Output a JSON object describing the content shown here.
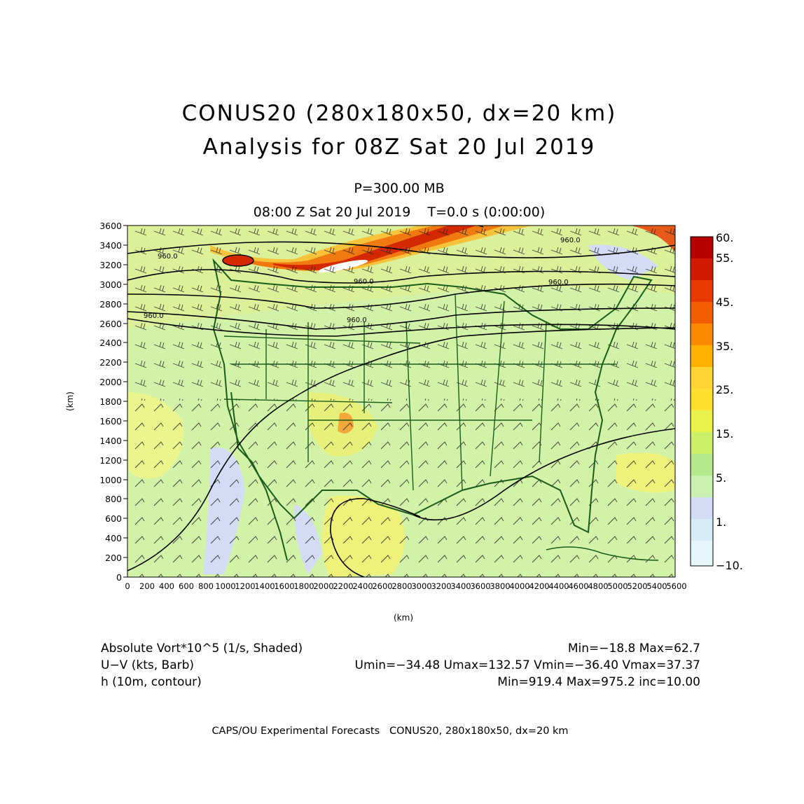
{
  "title": {
    "line1": "CONUS20 (280x180x50, dx=20 km)",
    "line2": "Analysis for 08Z Sat 20 Jul 2019"
  },
  "level": "P=300.00 MB",
  "valid_time": "08:00 Z Sat 20 Jul 2019    T=0.0 s (0:00:00)",
  "axes": {
    "xlabel": "(km)",
    "ylabel": "(km)",
    "xticks": [
      "0",
      "200",
      "400",
      "600",
      "800",
      "1000",
      "1200",
      "1400",
      "1600",
      "1800",
      "2000",
      "2200",
      "2400",
      "2600",
      "2800",
      "3000",
      "3200",
      "3400",
      "3600",
      "3800",
      "4000",
      "4200",
      "4400",
      "4600",
      "4800",
      "5000",
      "5200",
      "5400",
      "5600"
    ],
    "yticks": [
      "0",
      "200",
      "400",
      "600",
      "800",
      "1000",
      "1200",
      "1400",
      "1600",
      "1800",
      "2000",
      "2200",
      "2400",
      "2600",
      "2800",
      "3000",
      "3200",
      "3400",
      "3600"
    ]
  },
  "colorbar": {
    "labels": [
      "60.",
      "55.",
      "45.",
      "35.",
      "25.",
      "15.",
      "5.",
      "1.",
      "−10."
    ],
    "colors": [
      "#b50000",
      "#d21a00",
      "#e63a00",
      "#f25f00",
      "#fa8a00",
      "#ffb000",
      "#ffd535",
      "#e8f04a",
      "#cdf06a",
      "#b6e88c",
      "#c9f0b0",
      "#d4dcf5",
      "#d8ecf8",
      "#e6f6fb"
    ]
  },
  "contour_labels": [
    "960.0",
    "960.0",
    "960.0",
    "960.0",
    "960.0",
    "960.0"
  ],
  "legend": {
    "field1": "Absolute Vort*10^5 (1/s, Shaded)",
    "field1_stats": "Min=−18.8 Max=62.7",
    "field2": "U−V (kts, Barb)",
    "field2_stats": "Umin=−34.48 Umax=132.57 Vmin=−36.40 Vmax=37.37",
    "field3": "h (10m, contour)",
    "field3_stats": "Min=919.4 Max=975.2 inc=10.00"
  },
  "footer": "CAPS/OU Experimental Forecasts   CONUS20, 280x180x50, dx=20 km"
}
